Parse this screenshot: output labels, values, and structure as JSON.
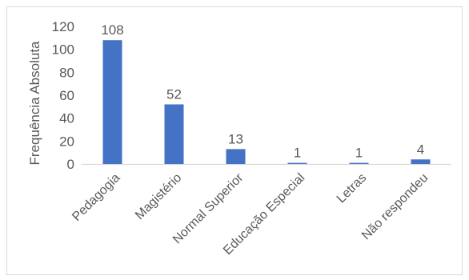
{
  "chart_data": {
    "type": "bar",
    "title": "",
    "xlabel": "",
    "ylabel": "Frequência Absoluta",
    "categories": [
      "Pedagogia",
      "Magistério",
      "Normal Superior",
      "Educação Especial",
      "Letras",
      "Não respondeu"
    ],
    "values": [
      108,
      52,
      13,
      1,
      1,
      4
    ],
    "data_labels": [
      "108",
      "52",
      "13",
      "1",
      "1",
      "4"
    ],
    "ylim": [
      0,
      120
    ],
    "yticks": [
      "0",
      "20",
      "40",
      "60",
      "80",
      "100",
      "120"
    ],
    "grid": false,
    "legend": "none",
    "bar_color": "#4472c4",
    "axis_color": "#d9d9d9",
    "text_color": "#595959"
  }
}
